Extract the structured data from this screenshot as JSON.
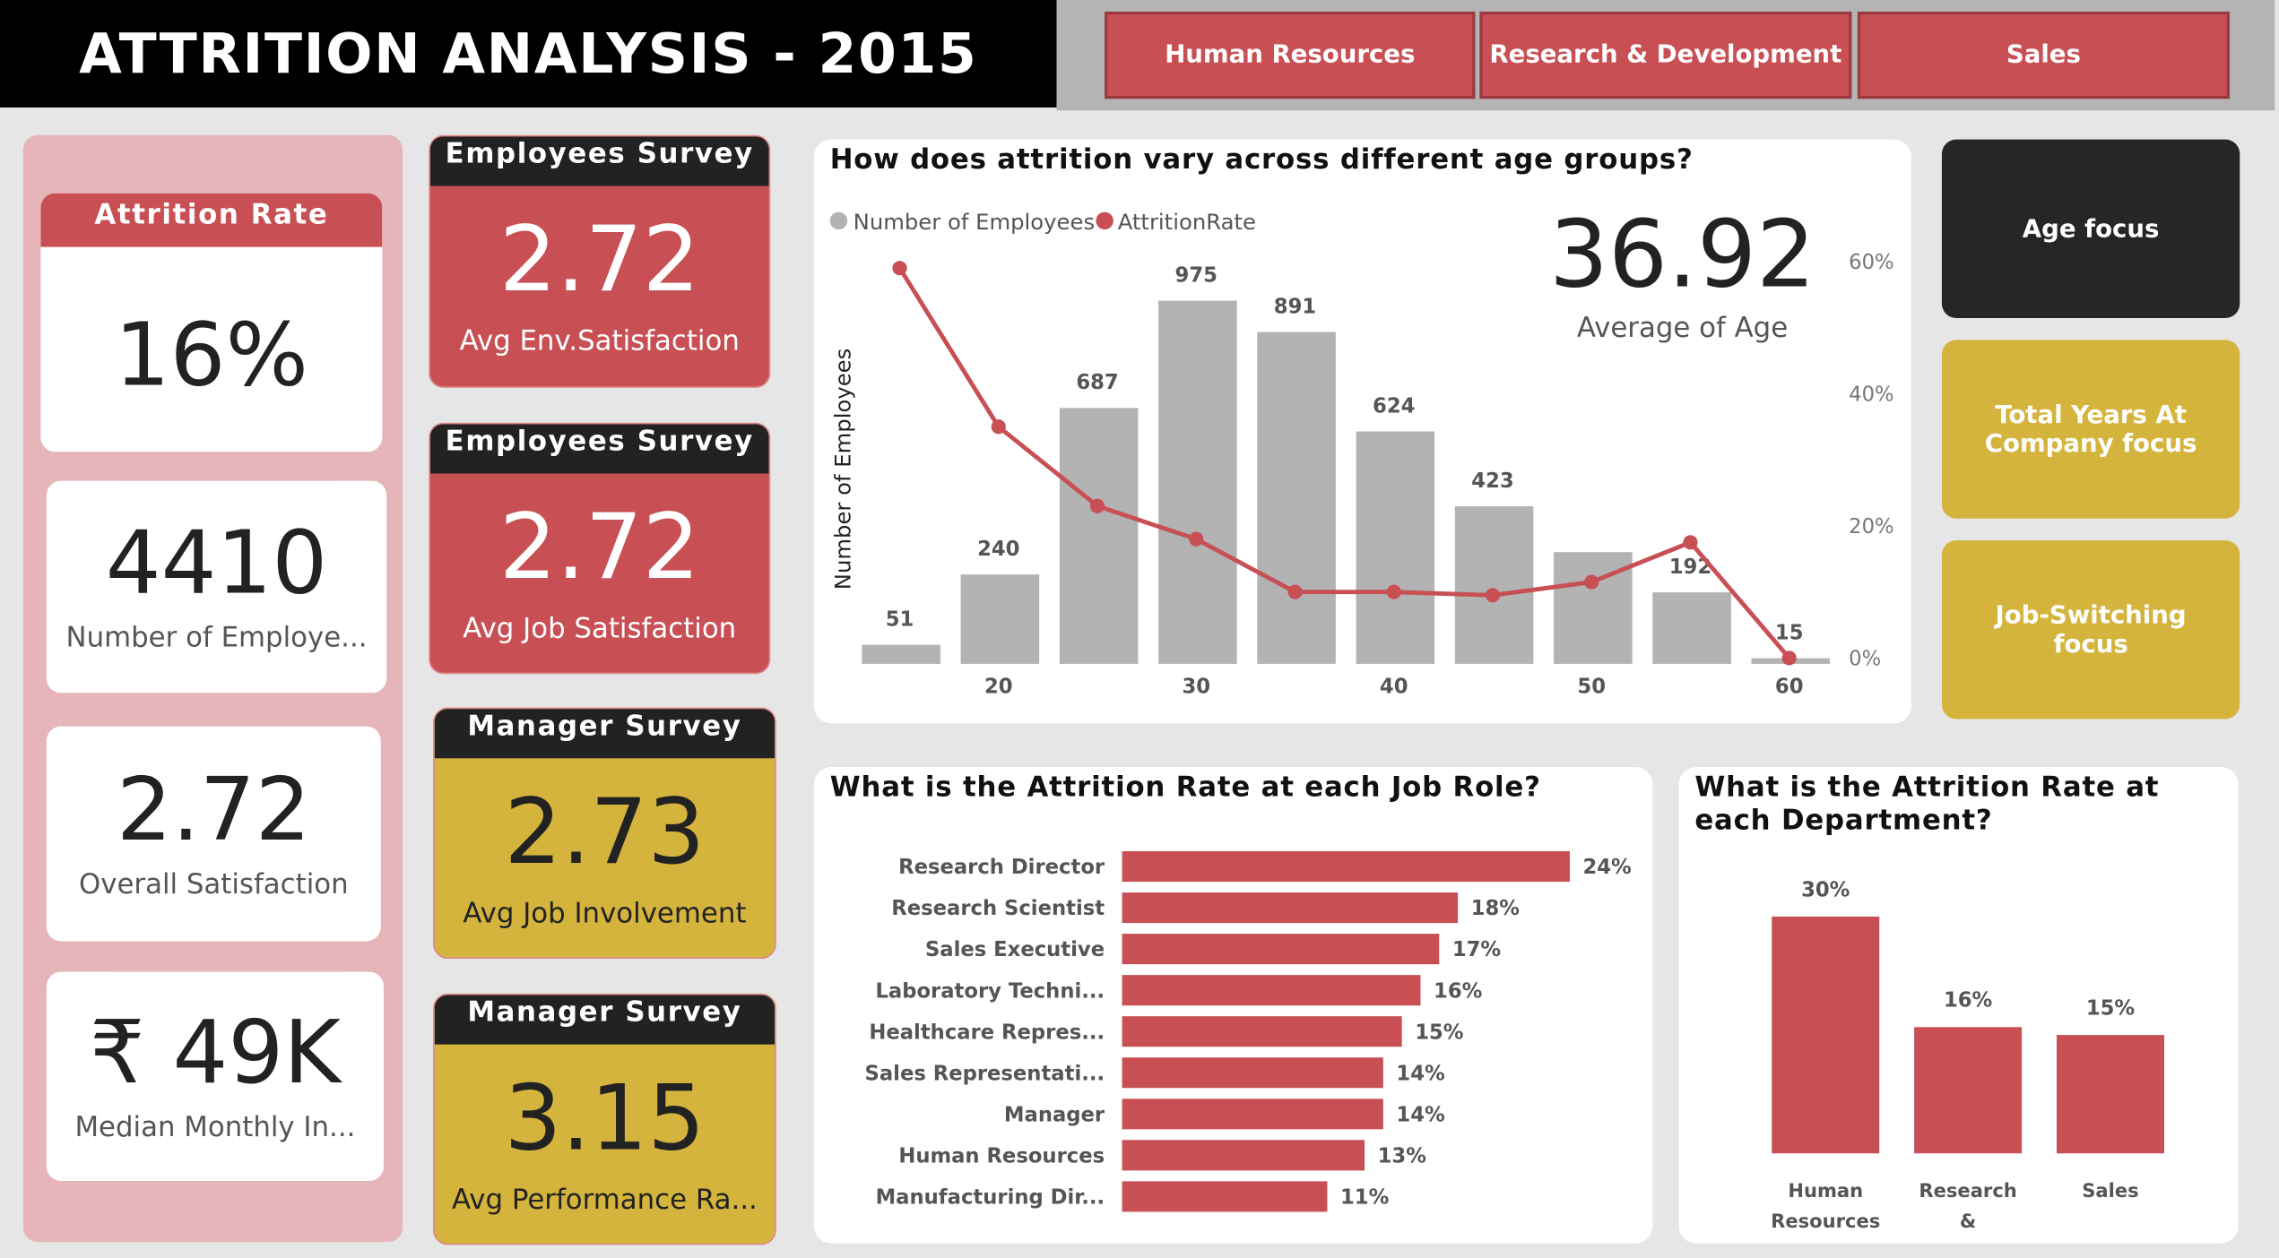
{
  "header": {
    "title": "ATTRITION ANALYSIS - 2015"
  },
  "nav": {
    "buttons": [
      "Human Resources",
      "Research & Development",
      "Sales"
    ]
  },
  "kpis": {
    "attrition": {
      "title": "Attrition Rate",
      "value": "16%"
    },
    "employees": {
      "value": "4410",
      "label": "Number of Employe..."
    },
    "satisfaction": {
      "value": "2.72",
      "label": "Overall Satisfaction"
    },
    "income": {
      "value": "₹ 49K",
      "label": "Median Monthly In..."
    }
  },
  "surveys": [
    {
      "header": "Employees Survey",
      "value": "2.72",
      "label": "Avg Env.Satisfaction"
    },
    {
      "header": "Employees Survey",
      "value": "2.72",
      "label": "Avg Job Satisfaction"
    },
    {
      "header": "Manager Survey",
      "value": "2.73",
      "label": "Avg Job Involvement"
    },
    {
      "header": "Manager Survey",
      "value": "3.15",
      "label": "Avg Performance Ra..."
    }
  ],
  "focus": {
    "buttons": [
      "Age focus",
      "Total Years At Company focus",
      "Job-Switching focus"
    ]
  },
  "colors": {
    "red": "#c85055",
    "yellow": "#d4b43c",
    "dark": "#262626",
    "gray": "#b3b3b3"
  },
  "chart_data": [
    {
      "type": "bar+line",
      "title": "How does attrition vary across different age groups?",
      "legend": [
        "Number of Employees",
        "AttritionRate"
      ],
      "legend_position": "top-left",
      "ylabel": "Number of Employees",
      "x": [
        15,
        20,
        25,
        30,
        35,
        40,
        45,
        50,
        55,
        60
      ],
      "x_ticks": [
        "20",
        "30",
        "40",
        "50",
        "60"
      ],
      "series": [
        {
          "name": "Number of Employees",
          "type": "bar",
          "values": [
            51,
            240,
            687,
            975,
            891,
            624,
            423,
            null,
            192,
            15
          ],
          "labels": [
            "51",
            "240",
            "687",
            "975",
            "891",
            "624",
            "423",
            "",
            "192",
            "15"
          ],
          "approx_unlabeled": {
            "50": 300
          }
        },
        {
          "name": "AttritionRate",
          "type": "line",
          "axis": "right",
          "values": [
            59,
            35,
            23,
            18,
            10,
            10,
            9.5,
            11.5,
            17.5,
            0
          ]
        }
      ],
      "right_ticks": [
        "0%",
        "20%",
        "40%",
        "60%"
      ],
      "right_ylim": [
        0,
        60
      ],
      "card": {
        "value": "36.92",
        "label": "Average of Age"
      }
    },
    {
      "type": "bar",
      "orientation": "horizontal",
      "title": "What is the Attrition Rate at each Job Role?",
      "categories": [
        "Research Director",
        "Research Scientist",
        "Sales Executive",
        "Laboratory Techni...",
        "Healthcare Repres...",
        "Sales Representati...",
        "Manager",
        "Human Resources",
        "Manufacturing Dir..."
      ],
      "values": [
        24,
        18,
        17,
        16,
        15,
        14,
        14,
        13,
        11
      ],
      "labels": [
        "24%",
        "18%",
        "17%",
        "16%",
        "15%",
        "14%",
        "14%",
        "13%",
        "11%"
      ]
    },
    {
      "type": "bar",
      "title": "What is the Attrition Rate at each Department?",
      "categories": [
        [
          "Human",
          "Resources"
        ],
        [
          "Research",
          "&"
        ],
        [
          "Sales",
          ""
        ]
      ],
      "values": [
        30,
        16,
        15
      ],
      "labels": [
        "30%",
        "16%",
        "15%"
      ]
    }
  ]
}
